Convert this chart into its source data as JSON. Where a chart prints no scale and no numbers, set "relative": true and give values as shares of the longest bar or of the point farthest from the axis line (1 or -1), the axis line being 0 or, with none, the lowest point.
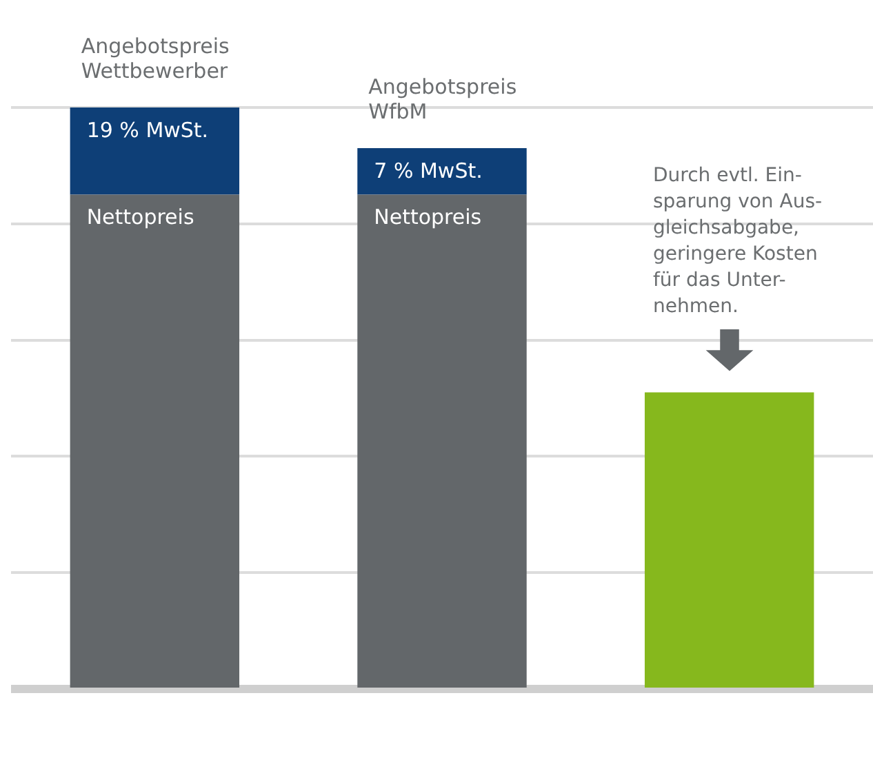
{
  "chart_data": {
    "type": "bar",
    "stacked": true,
    "relative": true,
    "grid": "y",
    "legend": false,
    "categories": [
      "Angebotspreis Wettbewerber",
      "Angebotspreis WfbM",
      null
    ],
    "series": [
      {
        "color": "#63676a",
        "values": [
          0.85,
          0.85,
          null
        ]
      },
      {
        "color": "#0e3f77",
        "values": [
          0.15,
          0.08,
          null
        ]
      },
      {
        "color": "#86b81d",
        "values": [
          null,
          null,
          0.51
        ]
      }
    ],
    "annotations": [
      "19 % MwSt.",
      "7 % MwSt.",
      "Nettopreis",
      "Nettopreis",
      "Durch evtl. Ein-\nsparung von Aus-\ngleichsabgabe,\ngeringere Kosten\nfür das Unter-\nnehmen."
    ]
  }
}
